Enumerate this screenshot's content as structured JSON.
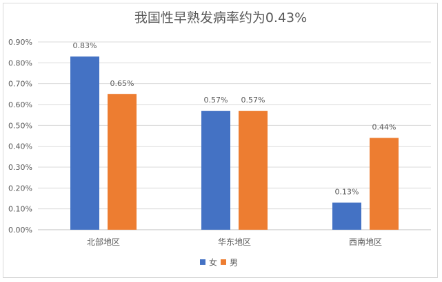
{
  "chart_data": {
    "type": "bar",
    "title": "我国性早熟发病率约为0.43%",
    "categories": [
      "北部地区",
      "华东地区",
      "西南地区"
    ],
    "series": [
      {
        "name": "女",
        "values": [
          0.83,
          0.57,
          0.13
        ],
        "labels": [
          "0.83%",
          "0.57%",
          "0.13%"
        ],
        "color": "#4472c4"
      },
      {
        "name": "男",
        "values": [
          0.65,
          0.57,
          0.44
        ],
        "labels": [
          "0.65%",
          "0.57%",
          "0.44%"
        ],
        "color": "#ed7d31"
      }
    ],
    "ylim": [
      0,
      0.9
    ],
    "yticks": [
      "0.00%",
      "0.10%",
      "0.20%",
      "0.30%",
      "0.40%",
      "0.50%",
      "0.60%",
      "0.70%",
      "0.80%",
      "0.90%"
    ],
    "grid": true,
    "legend": "bottom",
    "xlabel": "",
    "ylabel": ""
  }
}
